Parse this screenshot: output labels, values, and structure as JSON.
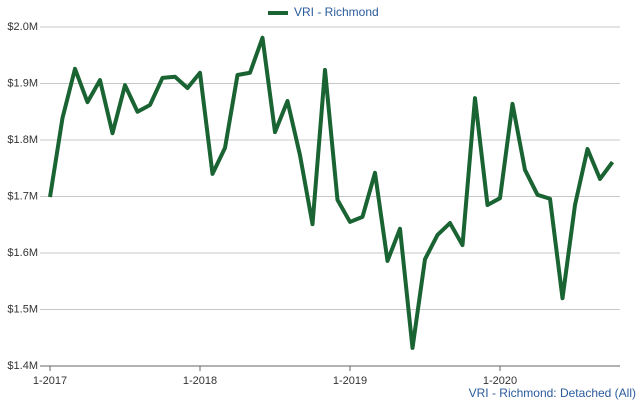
{
  "chart_data": {
    "type": "line",
    "legend_position": "top",
    "source": "VRI - Richmond: Detached (All)",
    "categories": [
      "1-2017",
      null,
      null,
      null,
      null,
      null,
      null,
      null,
      null,
      null,
      null,
      null,
      "1-2018",
      null,
      null,
      null,
      null,
      null,
      null,
      null,
      null,
      null,
      null,
      null,
      "1-2019",
      null,
      null,
      null,
      null,
      null,
      null,
      null,
      null,
      null,
      null,
      null,
      "1-2020",
      null,
      null,
      null,
      null,
      null,
      null,
      null,
      null,
      null
    ],
    "series": [
      {
        "name": "VRI - Richmond",
        "color": "#1a6332",
        "values": [
          1699000,
          1839000,
          1926000,
          1867000,
          1906000,
          1812000,
          1897000,
          1850000,
          1862000,
          1910000,
          1912000,
          1892000,
          1919000,
          1740000,
          1786000,
          1915000,
          1919000,
          1981000,
          1814000,
          1869000,
          1773000,
          1651000,
          1924000,
          1694000,
          1655000,
          1664000,
          1742000,
          1586000,
          1643000,
          1432000,
          1589000,
          1632000,
          1653000,
          1614000,
          1874000,
          1685000,
          1697000,
          1864000,
          1747000,
          1703000,
          1696000,
          1520000,
          1685000,
          1784000,
          1731000,
          1761000
        ]
      }
    ],
    "ylim": [
      1400000,
      2000000
    ],
    "yticks": [
      {
        "value": 1400000,
        "label": "$1.4M"
      },
      {
        "value": 1500000,
        "label": "$1.5M"
      },
      {
        "value": 1600000,
        "label": "$1.6M"
      },
      {
        "value": 1700000,
        "label": "$1.7M"
      },
      {
        "value": 1800000,
        "label": "$1.8M"
      },
      {
        "value": 1900000,
        "label": "$1.9M"
      },
      {
        "value": 2000000,
        "label": "$2.0M"
      }
    ],
    "grid": true
  }
}
